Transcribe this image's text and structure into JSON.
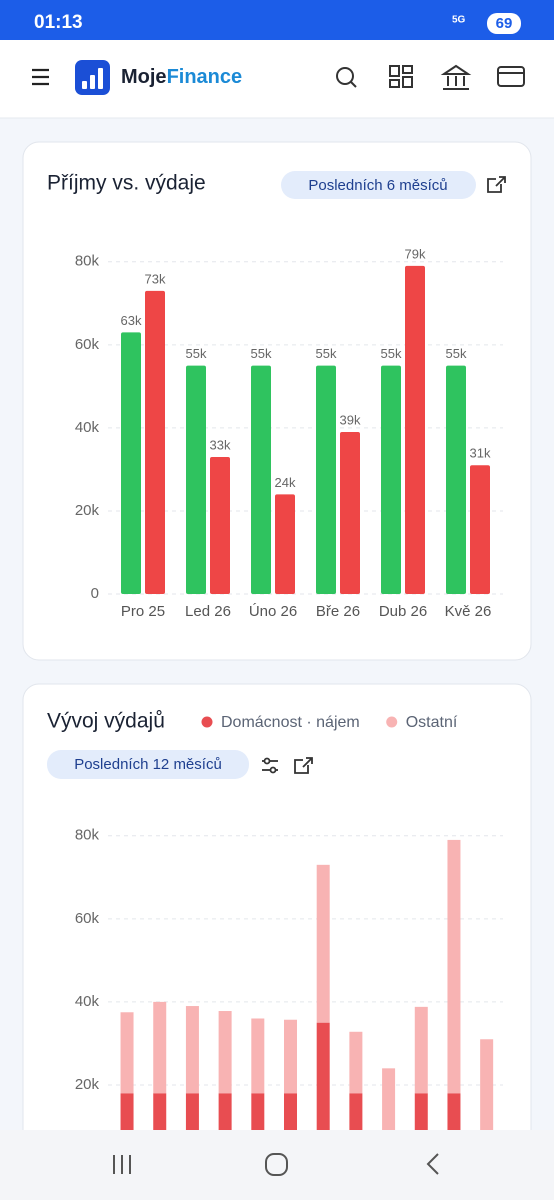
{
  "status_bar": {
    "time": "01:13",
    "network": "5G",
    "battery": "69"
  },
  "header": {
    "brand_part1": "Moje",
    "brand_part2": "Finance"
  },
  "chart_data": [
    {
      "type": "bar",
      "title": "Příjmy vs. výdaje",
      "subtitle": "Posledních 6 měsíců",
      "categories": [
        "Pro 25",
        "Led 26",
        "Úno 26",
        "Bře 26",
        "Dub 26",
        "Kvě 26"
      ],
      "series": [
        {
          "color": "#2fc35f",
          "values": [
            63000,
            55000,
            55000,
            55000,
            55000,
            55000
          ],
          "value_labels": [
            "63k",
            "55k",
            "55k",
            "55k",
            "55k",
            "55k"
          ]
        },
        {
          "color": "#ee4646",
          "values": [
            73000,
            33000,
            24000,
            39000,
            79000,
            31000
          ],
          "value_labels": [
            "73k",
            "33k",
            "24k",
            "39k",
            "79k",
            "31k"
          ]
        }
      ],
      "ylim": [
        0,
        85000
      ],
      "yticks": [
        {
          "value": 0,
          "label": "0"
        },
        {
          "value": 20000,
          "label": "20k"
        },
        {
          "value": 40000,
          "label": "40k"
        },
        {
          "value": 60000,
          "label": "60k"
        },
        {
          "value": 80000,
          "label": "80k"
        }
      ],
      "grid": true
    },
    {
      "type": "stacked_bar",
      "title": "Vývoj výdajů",
      "subtitle": "Posledních 12 měsíců",
      "series": [
        {
          "name": "Domácnost · nájem",
          "color": "#e84d51",
          "values": [
            18000,
            18000,
            18000,
            18000,
            18000,
            18000,
            35000,
            18000,
            0,
            18000,
            18000,
            0
          ]
        },
        {
          "name": "Ostatní",
          "color": "#f8b3b3",
          "values": [
            19500,
            22000,
            21000,
            19800,
            18000,
            17700,
            38000,
            14800,
            24000,
            20800,
            61000,
            31000
          ]
        }
      ],
      "ylim": [
        0,
        85000
      ],
      "yticks": [
        {
          "value": 20000,
          "label": "20k"
        },
        {
          "value": 40000,
          "label": "40k"
        },
        {
          "value": 60000,
          "label": "60k"
        },
        {
          "value": 80000,
          "label": "80k"
        }
      ],
      "grid": true
    }
  ]
}
